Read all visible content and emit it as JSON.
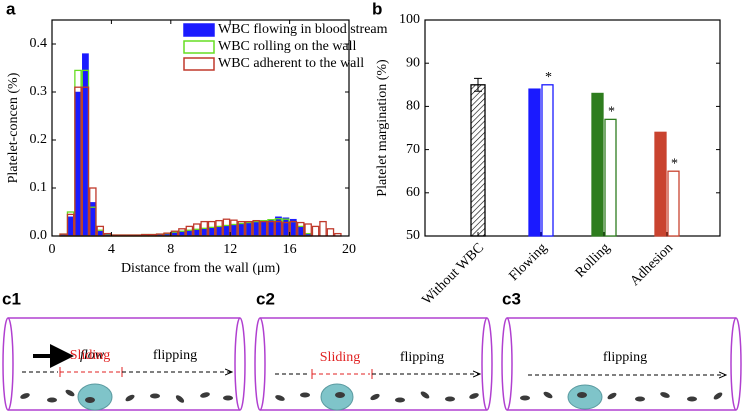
{
  "chart_data": [
    {
      "type": "histogram",
      "panel": "a",
      "xlabel": "Distance from the wall (μm)",
      "ylabel": "Platelet-concen (%)",
      "bins": [
        0,
        0.5,
        1,
        1.5,
        2,
        2.5,
        3,
        3.5,
        4,
        4.5,
        5,
        5.5,
        6,
        6.5,
        7,
        7.5,
        8,
        8.5,
        9,
        9.5,
        10,
        10.5,
        11,
        11.5,
        12,
        12.5,
        13,
        13.5,
        14,
        14.5,
        15,
        15.5,
        16,
        16.5,
        17,
        17.5,
        18,
        18.5,
        19,
        19.5,
        20
      ],
      "series": [
        {
          "name": "WBC flowing in blood stream",
          "color": "#1a1aff",
          "fill": true,
          "values": [
            0,
            0.003,
            0.04,
            0.3,
            0.38,
            0.07,
            0.01,
            0.004,
            0.002,
            0.002,
            0.002,
            0.002,
            0.003,
            0.003,
            0.004,
            0.005,
            0.008,
            0.01,
            0.012,
            0.014,
            0.016,
            0.018,
            0.02,
            0.022,
            0.024,
            0.026,
            0.028,
            0.03,
            0.032,
            0.034,
            0.04,
            0.038,
            0.035,
            0.02,
            0.005,
            0,
            0,
            0,
            0,
            0
          ]
        },
        {
          "name": "WBC rolling on the wall",
          "color": "#66dd22",
          "fill": false,
          "values": [
            0,
            0.004,
            0.05,
            0.345,
            0.345,
            0.06,
            0.012,
            0.004,
            0.002,
            0.002,
            0.002,
            0.002,
            0.003,
            0.003,
            0.004,
            0.005,
            0.008,
            0.01,
            0.012,
            0.014,
            0.016,
            0.018,
            0.02,
            0.022,
            0.024,
            0.026,
            0.028,
            0.03,
            0.032,
            0.034,
            0.036,
            0.035,
            0.03,
            0.02,
            0.005,
            0,
            0,
            0,
            0,
            0
          ]
        },
        {
          "name": "WBC adherent to the wall",
          "color": "#c0392b",
          "fill": false,
          "values": [
            0,
            0.004,
            0.045,
            0.31,
            0.31,
            0.1,
            0.02,
            0.005,
            0.002,
            0.002,
            0.002,
            0.002,
            0.003,
            0.003,
            0.004,
            0.006,
            0.01,
            0.015,
            0.02,
            0.025,
            0.03,
            0.03,
            0.032,
            0.035,
            0.033,
            0.03,
            0.03,
            0.032,
            0.03,
            0.03,
            0.03,
            0.028,
            0.03,
            0.028,
            0.025,
            0.02,
            0.03,
            0.015,
            0.005,
            0
          ]
        }
      ],
      "xlim": [
        0,
        20
      ],
      "xticks": [
        0,
        4,
        8,
        12,
        16,
        20
      ],
      "ylim": [
        0,
        0.45
      ],
      "yticks": [
        {
          "value": 0,
          "label": "0.0"
        },
        0.1,
        0.2,
        0.3,
        0.4
      ],
      "legend": "upper right"
    },
    {
      "type": "bar",
      "panel": "b",
      "ylabel": "Platelet margination (%)",
      "categories": [
        "Without WBC",
        "Flowing",
        "Rolling",
        "Adhesion"
      ],
      "colors": [
        "#000000",
        "#1a1aff",
        "#2e7d1e",
        "#c9432f"
      ],
      "series": [
        {
          "values": [
            85,
            84,
            83,
            74
          ],
          "errors": [
            1.5,
            null,
            null,
            null
          ],
          "fill": true
        },
        {
          "values": [
            null,
            85,
            77,
            65
          ],
          "fill": false,
          "annotations": [
            null,
            "*",
            "*",
            "*"
          ]
        }
      ],
      "ylim": [
        50,
        100
      ],
      "yticks": [
        50,
        60,
        70,
        80,
        90,
        100
      ]
    }
  ],
  "panels": [
    {
      "label": "c1",
      "flow": "flow",
      "sliding": "Sliding",
      "flipping": "flipping"
    },
    {
      "label": "c2",
      "sliding": "Sliding",
      "flipping": "flipping"
    },
    {
      "label": "c3",
      "flipping": "flipping"
    }
  ]
}
